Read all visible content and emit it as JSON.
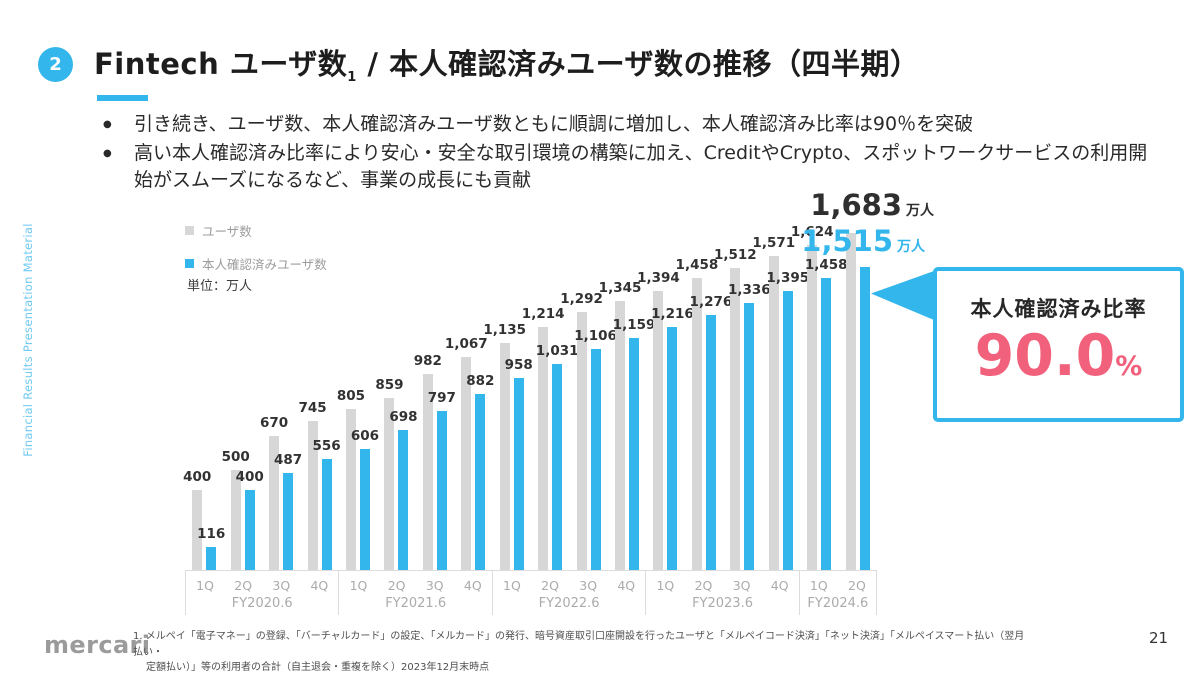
{
  "slide": {
    "badge_number": "2",
    "title_prefix": "Fintech ユーザ数",
    "title_subscript": "1",
    "title_suffix": " / 本人確認済みユーザ数の推移（四半期）",
    "bullets": [
      "引き続き、ユーザ数、本人確認済みユーザ数ともに順調に増加し、本人確認済み比率は90％を突破",
      "高い本人確認済み比率により安心・安全な取引環境の構築に加え、CreditやCrypto、スポットワークサービスの利用開始がスムーズになるなど、事業の成長にも貢献"
    ],
    "sidebar_text": "Financial Results Presentation Material",
    "logo_text": "mercari",
    "footnote_line1": "1. メルペイ「電子マネー」の登録、「バーチャルカード」の設定、「メルカード」の発行、暗号資産取引口座開設を行ったユーザと「メルペイコード決済」「ネット決済」「メルペイスマート払い（翌月払い・",
    "footnote_line2": "定額払い）」等の利用者の合計（自主退会・重複を除く）2023年12月末時点",
    "page_number": "21"
  },
  "chart_data": {
    "type": "bar",
    "unit_label": "単位：万人",
    "legend_position": "top-left",
    "grid": false,
    "ylim": [
      0,
      1700
    ],
    "legend": [
      {
        "name": "ユーザ数",
        "color": "#D7D7D7"
      },
      {
        "name": "本人確認済みユーザ数",
        "color": "#33B6EC"
      }
    ],
    "categories": [
      "1Q",
      "2Q",
      "3Q",
      "4Q",
      "1Q",
      "2Q",
      "3Q",
      "4Q",
      "1Q",
      "2Q",
      "3Q",
      "4Q",
      "1Q",
      "2Q",
      "3Q",
      "4Q",
      "1Q",
      "2Q"
    ],
    "fiscal_years": [
      {
        "label": "FY2020.6",
        "quarters": [
          "1Q",
          "2Q",
          "3Q",
          "4Q"
        ]
      },
      {
        "label": "FY2021.6",
        "quarters": [
          "1Q",
          "2Q",
          "3Q",
          "4Q"
        ]
      },
      {
        "label": "FY2022.6",
        "quarters": [
          "1Q",
          "2Q",
          "3Q",
          "4Q"
        ]
      },
      {
        "label": "FY2023.6",
        "quarters": [
          "1Q",
          "2Q",
          "3Q",
          "4Q"
        ]
      },
      {
        "label": "FY2024.6",
        "quarters": [
          "1Q",
          "2Q"
        ]
      }
    ],
    "series": [
      {
        "name": "ユーザ数",
        "values": [
          400,
          500,
          670,
          745,
          805,
          859,
          982,
          1067,
          1135,
          1214,
          1292,
          1345,
          1394,
          1458,
          1512,
          1571,
          1624,
          1683
        ]
      },
      {
        "name": "本人確認済みユーザ数",
        "values": [
          116,
          400,
          487,
          556,
          606,
          698,
          797,
          882,
          958,
          1031,
          1106,
          1159,
          1216,
          1276,
          1336,
          1395,
          1458,
          1515
        ]
      }
    ],
    "highlight": {
      "users_value": "1,683",
      "users_unit": "万人",
      "verified_value": "1,515",
      "verified_unit": "万人"
    },
    "callout": {
      "title": "本人確認済み比率",
      "value": "90.0",
      "unit": "%"
    }
  },
  "colors": {
    "accent_blue": "#33B6EC",
    "bar_gray": "#D7D7D7",
    "callout_pink": "#F2617C",
    "axis_gray": "#ABABAB",
    "value_label": "#323232",
    "sidebar_blue": "#6FC9F0"
  }
}
